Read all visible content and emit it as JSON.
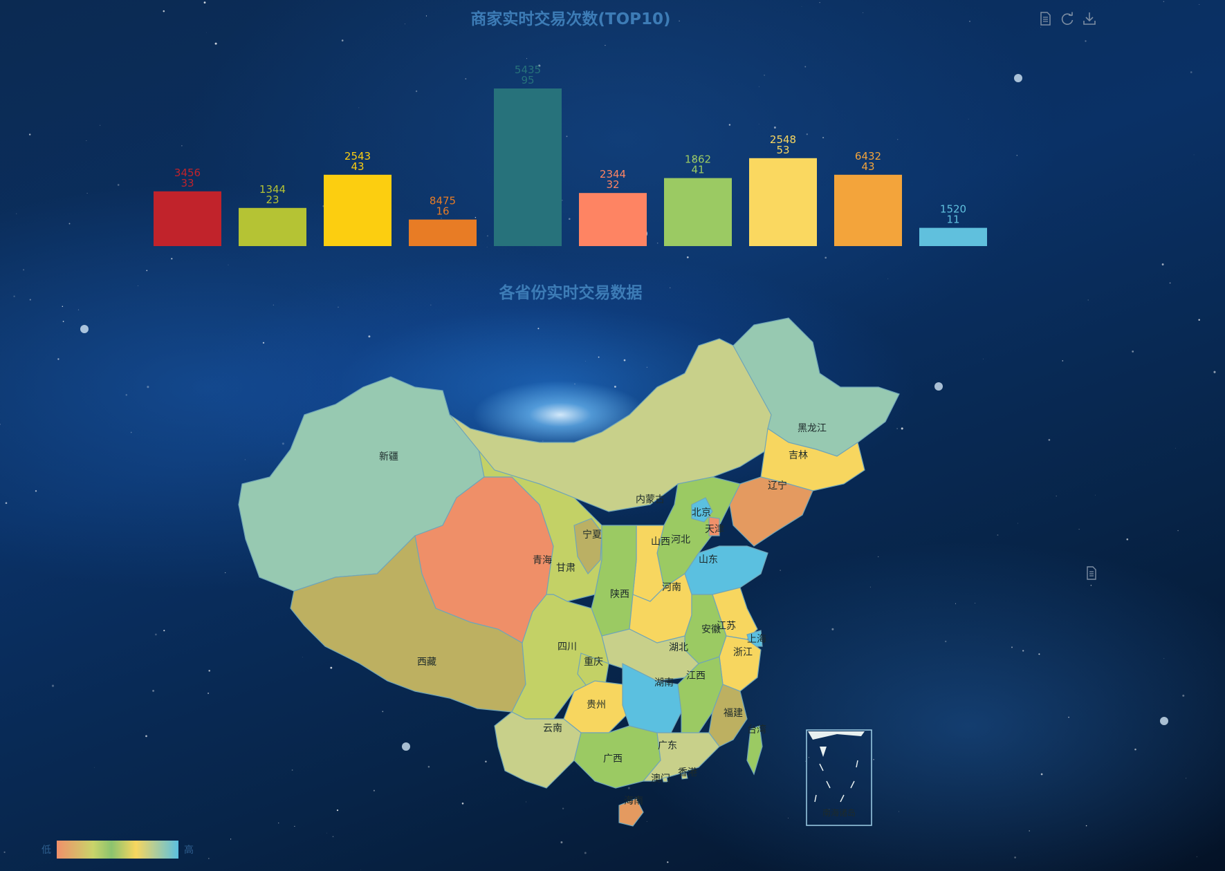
{
  "bar_title": "商家实时交易次数(TOP10)",
  "map_title": "各省份实时交易数据",
  "toolbox": [
    {
      "name": "data-view-icon",
      "title": "数据视图"
    },
    {
      "name": "restore-icon",
      "title": "还原"
    },
    {
      "name": "save-image-icon",
      "title": "保存为图片"
    }
  ],
  "side_toolbox": {
    "name": "data-view-icon",
    "title": "数据视图"
  },
  "visual_map": {
    "low_label": "低",
    "high_label": "高",
    "colors": [
      "#f0906a",
      "#c9d46a",
      "#8cc36e",
      "#f7d65f",
      "#5bc0e0"
    ]
  },
  "inset_label": "南海诸岛",
  "chart_data": [
    {
      "type": "bar",
      "title": "商家实时交易次数(TOP10)",
      "xlabel": "",
      "ylabel": "",
      "ylim": [
        0,
        100
      ],
      "data_labels": [
        "3456\n33",
        "1344\n23",
        "2543\n43",
        "8475\n16",
        "5435\n95",
        "2344\n32",
        "1862\n41",
        "2548\n53",
        "6432\n43",
        "1520\n11"
      ],
      "values": [
        33,
        23,
        43,
        16,
        95,
        32,
        41,
        53,
        43,
        11
      ],
      "colors": [
        "#c1232b",
        "#b5c334",
        "#fcce10",
        "#e87c25",
        "#27727b",
        "#fe8463",
        "#9bca63",
        "#fad860",
        "#f3a43b",
        "#60c0dd"
      ]
    },
    {
      "type": "map",
      "title": "各省份实时交易数据",
      "legend": "bottom-left",
      "provinces": [
        "新疆",
        "西藏",
        "青海",
        "甘肃",
        "宁夏",
        "内蒙古",
        "黑龙江",
        "吉林",
        "辽宁",
        "北京",
        "天津",
        "河北",
        "山西",
        "陕西",
        "山东",
        "河南",
        "江苏",
        "安徽",
        "上海",
        "浙江",
        "湖北",
        "四川",
        "重庆",
        "贵州",
        "云南",
        "广西",
        "广东",
        "湖南",
        "江西",
        "福建",
        "台湾",
        "海南",
        "香港",
        "澳门"
      ]
    }
  ]
}
